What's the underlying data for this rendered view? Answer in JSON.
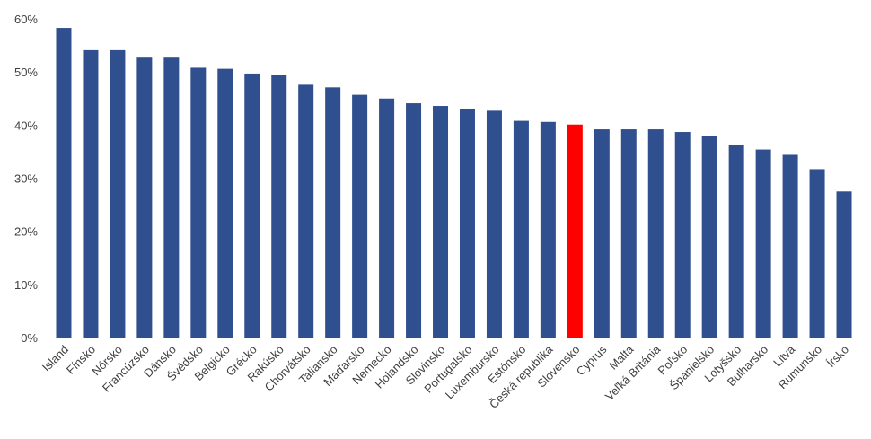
{
  "chart_data": {
    "type": "bar",
    "title": "",
    "xlabel": "",
    "ylabel": "",
    "ylim": [
      0,
      60
    ],
    "yticks": [
      "0%",
      "10%",
      "20%",
      "30%",
      "40%",
      "50%",
      "60%"
    ],
    "grid": false,
    "legend": "none",
    "categories": [
      "Island",
      "Fínsko",
      "Nórsko",
      "Francúzsko",
      "Dánsko",
      "Švédsko",
      "Belgicko",
      "Grécko",
      "Rakúsko",
      "Chorvátsko",
      "Taliansko",
      "Maďarsko",
      "Nemecko",
      "Holandsko",
      "Slovinsko",
      "Portugalsko",
      "Luxembursko",
      "Estónsko",
      "Česká republika",
      "Slovensko",
      "Cyprus",
      "Malta",
      "Veľká Británia",
      "Poľsko",
      "Španielsko",
      "Lotyšsko",
      "Bulharsko",
      "Litva",
      "Rumunsko",
      "Írsko"
    ],
    "values": [
      58.3,
      54.1,
      54.1,
      52.7,
      52.7,
      50.8,
      50.6,
      49.7,
      49.4,
      47.6,
      47.1,
      45.7,
      45.0,
      44.1,
      43.6,
      43.1,
      42.7,
      40.8,
      40.6,
      40.1,
      39.2,
      39.2,
      39.2,
      38.7,
      38.0,
      36.3,
      35.4,
      34.4,
      31.7,
      27.5
    ],
    "bar_color": "#2f4f8f",
    "highlight": {
      "category": "Slovensko",
      "color": "#ff0000"
    }
  }
}
